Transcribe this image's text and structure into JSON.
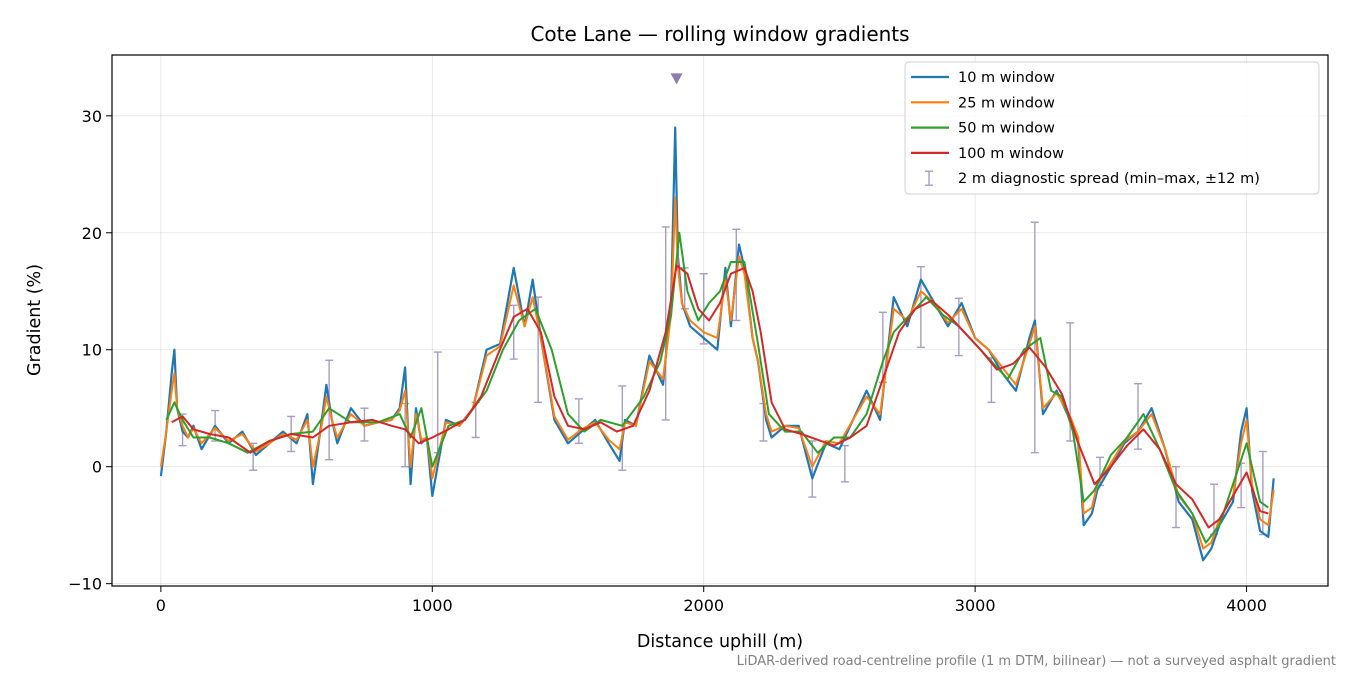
{
  "chart_data": {
    "type": "line",
    "title": "Cote Lane — rolling window gradients",
    "xlabel": "Distance uphill (m)",
    "ylabel": "Gradient (%)",
    "footnote": "LiDAR-derived road-centreline profile (1 m DTM, bilinear) — not a surveyed asphalt gradient",
    "xlim": [
      -180,
      4300
    ],
    "ylim": [
      -10.2,
      35.2
    ],
    "xticks": [
      0,
      1000,
      2000,
      3000,
      4000
    ],
    "yticks": [
      -10,
      0,
      10,
      20,
      30
    ],
    "xtick_labels": [
      "0",
      "1000",
      "2000",
      "3000",
      "4000"
    ],
    "ytick_labels": [
      "−10",
      "0",
      "10",
      "20",
      "30"
    ],
    "grid": true,
    "legend_position": "top-right",
    "legend": [
      "10 m window",
      "25 m window",
      "50 m window",
      "100 m window",
      "2 m diagnostic spread (min–max, ±12 m)"
    ],
    "max_marker": {
      "x": 1900,
      "y": 33.2,
      "color": "#8c7fb0"
    },
    "series": [
      {
        "name": "10 m window",
        "color": "#1f77b4",
        "width": 2.2,
        "x": [
          0,
          20,
          40,
          50,
          60,
          80,
          100,
          120,
          150,
          200,
          250,
          300,
          350,
          400,
          450,
          500,
          540,
          560,
          590,
          610,
          630,
          650,
          700,
          750,
          800,
          850,
          880,
          900,
          920,
          940,
          960,
          980,
          1000,
          1050,
          1100,
          1150,
          1200,
          1250,
          1300,
          1340,
          1370,
          1400,
          1450,
          1500,
          1550,
          1600,
          1650,
          1690,
          1710,
          1750,
          1800,
          1850,
          1880,
          1895,
          1905,
          1920,
          1950,
          2000,
          2050,
          2080,
          2100,
          2130,
          2150,
          2180,
          2200,
          2230,
          2250,
          2300,
          2350,
          2400,
          2450,
          2500,
          2550,
          2600,
          2650,
          2700,
          2750,
          2800,
          2850,
          2900,
          2950,
          3000,
          3050,
          3100,
          3150,
          3200,
          3220,
          3250,
          3300,
          3350,
          3380,
          3400,
          3430,
          3450,
          3500,
          3550,
          3600,
          3650,
          3700,
          3750,
          3800,
          3840,
          3870,
          3900,
          3950,
          3980,
          4000,
          4020,
          4050,
          4080,
          4100
        ],
        "y": [
          -0.8,
          3,
          8,
          10,
          5,
          3,
          2.5,
          3.5,
          1.5,
          3.5,
          2,
          3,
          1,
          2,
          3,
          2,
          4.5,
          -1.5,
          3.5,
          7,
          4,
          2,
          5,
          3.5,
          3.8,
          4,
          5,
          8.5,
          -1.5,
          5,
          2,
          2.5,
          -2.5,
          4,
          3.5,
          5,
          10,
          10.5,
          17,
          12,
          16,
          11,
          4,
          2,
          3,
          4,
          2,
          0.5,
          4,
          3.5,
          9.5,
          7,
          14,
          29,
          18,
          14,
          12,
          11,
          10,
          17,
          12,
          19,
          17,
          11,
          9,
          4,
          2.5,
          3.5,
          3.5,
          -1,
          2,
          1.5,
          4,
          6.5,
          4,
          14.5,
          12,
          16,
          14,
          12,
          14,
          11,
          10,
          8,
          6.5,
          11,
          12.5,
          4.5,
          6.5,
          4,
          2,
          -5,
          -4,
          -2,
          0,
          2,
          3,
          5,
          1.5,
          -3,
          -4.5,
          -8,
          -7,
          -5,
          -3,
          3,
          5,
          -2,
          -5.5,
          -6,
          -1
        ]
      },
      {
        "name": "25 m window",
        "color": "#ff7f0e",
        "width": 2.0,
        "x": [
          0,
          20,
          40,
          50,
          60,
          80,
          100,
          120,
          150,
          200,
          250,
          300,
          350,
          400,
          450,
          500,
          540,
          560,
          590,
          610,
          630,
          650,
          700,
          750,
          800,
          850,
          880,
          900,
          920,
          940,
          960,
          980,
          1000,
          1050,
          1100,
          1150,
          1200,
          1250,
          1300,
          1340,
          1370,
          1400,
          1450,
          1500,
          1550,
          1600,
          1650,
          1690,
          1710,
          1750,
          1800,
          1850,
          1880,
          1895,
          1905,
          1920,
          1950,
          2000,
          2050,
          2080,
          2100,
          2130,
          2150,
          2180,
          2200,
          2230,
          2250,
          2300,
          2350,
          2400,
          2450,
          2500,
          2550,
          2600,
          2650,
          2700,
          2750,
          2800,
          2850,
          2900,
          2950,
          3000,
          3050,
          3100,
          3150,
          3200,
          3220,
          3250,
          3300,
          3350,
          3380,
          3400,
          3430,
          3450,
          3500,
          3550,
          3600,
          3650,
          3700,
          3750,
          3800,
          3840,
          3870,
          3900,
          3950,
          3980,
          4000,
          4020,
          4050,
          4080,
          4100
        ],
        "y": [
          0,
          3,
          6.5,
          8,
          5,
          3.5,
          2.5,
          3.3,
          2,
          3.3,
          2.2,
          2.8,
          1.3,
          2,
          2.8,
          2.3,
          4,
          0,
          3.2,
          6,
          4,
          2.5,
          4.5,
          3.5,
          3.8,
          4,
          4.8,
          6.5,
          0,
          4.5,
          2.3,
          2.5,
          -1,
          3.8,
          3.5,
          5,
          9.5,
          10.3,
          15.5,
          12,
          14.5,
          11,
          4.3,
          2.3,
          3.2,
          3.8,
          2.3,
          1.5,
          3.8,
          3.5,
          9,
          7.5,
          13,
          23,
          17,
          14,
          12.5,
          11.5,
          11,
          16,
          12.5,
          18,
          16.5,
          11,
          9,
          4.5,
          3,
          3.5,
          3.3,
          0,
          2.2,
          2,
          4,
          6,
          4.5,
          13.5,
          12.5,
          15,
          14,
          12.3,
          13.5,
          11,
          10,
          8.5,
          7,
          10.5,
          12,
          5,
          6.3,
          4.3,
          2.5,
          -4,
          -3.5,
          -1.5,
          0.3,
          2.2,
          3,
          4.5,
          1.5,
          -2.5,
          -4,
          -7,
          -6.5,
          -4.5,
          -2.5,
          2,
          4,
          -1.5,
          -4.5,
          -5,
          -2
        ]
      },
      {
        "name": "50 m window",
        "color": "#2ca02c",
        "width": 2.0,
        "x": [
          20,
          50,
          80,
          120,
          180,
          250,
          320,
          400,
          480,
          560,
          620,
          700,
          800,
          880,
          920,
          960,
          1000,
          1060,
          1120,
          1200,
          1260,
          1320,
          1380,
          1440,
          1500,
          1560,
          1620,
          1700,
          1780,
          1840,
          1880,
          1910,
          1940,
          1980,
          2020,
          2060,
          2100,
          2150,
          2200,
          2240,
          2300,
          2360,
          2420,
          2480,
          2540,
          2600,
          2660,
          2700,
          2760,
          2820,
          2880,
          2940,
          3000,
          3060,
          3120,
          3180,
          3240,
          3280,
          3320,
          3360,
          3400,
          3440,
          3500,
          3560,
          3620,
          3680,
          3740,
          3800,
          3850,
          3900,
          3950,
          4000,
          4050,
          4080
        ],
        "y": [
          4,
          5.5,
          4,
          2.5,
          2.5,
          2,
          1.2,
          2.2,
          2.8,
          3,
          5,
          3.8,
          3.8,
          4.5,
          2.5,
          5,
          0,
          3.5,
          4,
          6.5,
          10,
          12.5,
          13.5,
          10,
          4.5,
          3,
          4,
          3.5,
          6,
          9,
          13,
          20,
          15,
          12.5,
          14,
          15,
          17.5,
          17.5,
          10.5,
          4.5,
          3,
          3,
          1.2,
          2.5,
          2.5,
          4.5,
          9,
          11.5,
          13,
          14.5,
          13,
          12,
          10.5,
          9,
          7.5,
          10,
          11,
          6.5,
          6,
          3,
          -3,
          -2,
          1,
          2.5,
          4.5,
          1.5,
          -2,
          -4,
          -6.5,
          -5,
          -1.5,
          2,
          -3,
          -3.5
        ]
      },
      {
        "name": "100 m window",
        "color": "#d62728",
        "width": 2.0,
        "x": [
          40,
          80,
          120,
          180,
          250,
          330,
          400,
          480,
          560,
          620,
          700,
          780,
          850,
          900,
          950,
          1000,
          1060,
          1120,
          1180,
          1240,
          1300,
          1350,
          1400,
          1450,
          1500,
          1560,
          1620,
          1680,
          1740,
          1800,
          1860,
          1900,
          1940,
          1980,
          2020,
          2060,
          2100,
          2150,
          2180,
          2210,
          2250,
          2300,
          2360,
          2420,
          2480,
          2540,
          2600,
          2660,
          2720,
          2780,
          2840,
          2900,
          2960,
          3020,
          3080,
          3140,
          3200,
          3260,
          3320,
          3380,
          3440,
          3500,
          3560,
          3620,
          3680,
          3740,
          3800,
          3860,
          3900,
          3950,
          4000,
          4050,
          4080
        ],
        "y": [
          3.8,
          4.3,
          3.2,
          2.8,
          2.5,
          1.2,
          2.2,
          2.8,
          2.5,
          3.5,
          3.8,
          4,
          3.5,
          3.2,
          2,
          2.5,
          3.2,
          4,
          6,
          9.5,
          12.8,
          13.5,
          11.5,
          6,
          3.5,
          3.2,
          3.8,
          3,
          3.5,
          6.5,
          11.5,
          17.2,
          16.5,
          13.5,
          12.5,
          14,
          16.5,
          17,
          15,
          11.5,
          5.5,
          3.2,
          2.8,
          2.3,
          1.8,
          2.5,
          3.5,
          7.5,
          11.5,
          13.5,
          14.2,
          13,
          11.5,
          10,
          8.3,
          8.8,
          10.2,
          8.5,
          6.2,
          2,
          -1.5,
          0,
          1.8,
          3.2,
          1.5,
          -1.5,
          -2.8,
          -5.2,
          -4.5,
          -2.5,
          -0.5,
          -3.8,
          -4
        ]
      }
    ],
    "error_bars": {
      "name": "2 m diagnostic spread (min–max, ±12 m)",
      "color": "#a89cc4",
      "x": [
        80,
        200,
        340,
        480,
        620,
        750,
        900,
        1020,
        1160,
        1300,
        1390,
        1540,
        1700,
        1860,
        1930,
        2000,
        2120,
        2220,
        2400,
        2520,
        2660,
        2800,
        2940,
        3060,
        3220,
        3350,
        3460,
        3600,
        3740,
        3880,
        3980,
        4060
      ],
      "ymin": [
        1.8,
        2.2,
        -0.3,
        1.3,
        0.6,
        2.2,
        0,
        1.2,
        2.5,
        9.2,
        5.5,
        2,
        -0.3,
        4,
        13.5,
        10.5,
        12.5,
        2.2,
        -2.6,
        -1.3,
        7.2,
        10.2,
        9.5,
        5.5,
        1.2,
        2.2,
        -1.6,
        1.5,
        -5.2,
        -5.8,
        -3.5,
        -5.8
      ],
      "ymax": [
        4.5,
        4.8,
        2,
        4.3,
        9.1,
        5,
        5.4,
        9.8,
        5.5,
        13.8,
        14.5,
        5.8,
        6.9,
        20.5,
        17,
        16.5,
        20.3,
        5.4,
        2.2,
        1.8,
        13.2,
        17.1,
        14.4,
        9.3,
        20.9,
        12.3,
        0.8,
        7.1,
        0,
        -1.5,
        0.3,
        1.3
      ]
    }
  }
}
